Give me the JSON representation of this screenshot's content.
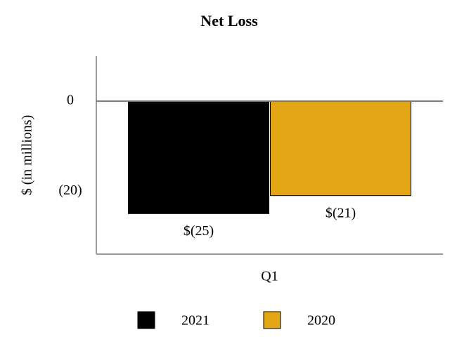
{
  "chart_data": {
    "type": "bar",
    "title": "Net Loss",
    "y_label": "$ (in millions)",
    "categories": [
      "Q1"
    ],
    "series": [
      {
        "name": "2021",
        "color": "#000000",
        "values": [
          -25
        ],
        "value_labels": [
          "$(25)"
        ]
      },
      {
        "name": "2020",
        "color": "#e3a716",
        "values": [
          -21
        ],
        "value_labels": [
          "$(21)"
        ]
      }
    ],
    "ylim": [
      -34,
      10
    ],
    "yticks": [
      0,
      {
        "value": -20,
        "label": "(20)"
      }
    ],
    "grid": false
  }
}
